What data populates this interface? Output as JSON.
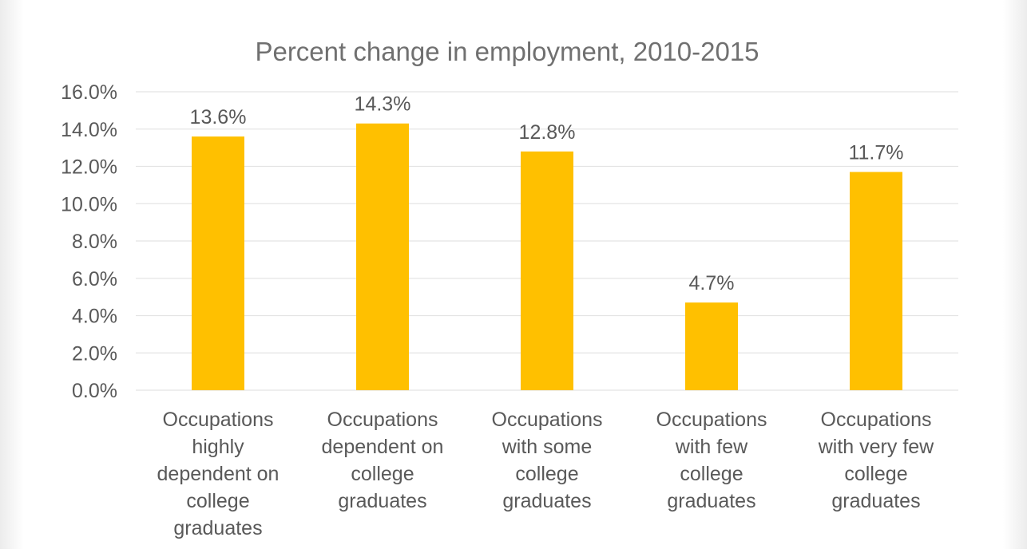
{
  "chart_data": {
    "type": "bar",
    "title": "Percent change in employment, 2010-2015",
    "categories": [
      [
        "Occupations",
        "highly",
        "dependent on",
        "college",
        "graduates"
      ],
      [
        "Occupations",
        "dependent on",
        "college",
        "graduates"
      ],
      [
        "Occupations",
        "with some",
        "college",
        "graduates"
      ],
      [
        "Occupations",
        "with few",
        "college",
        "graduates"
      ],
      [
        "Occupations",
        "with very few",
        "college",
        "graduates"
      ]
    ],
    "values": [
      13.6,
      14.3,
      12.8,
      4.7,
      11.7
    ],
    "data_labels": [
      "13.6%",
      "14.3%",
      "12.8%",
      "4.7%",
      "11.7%"
    ],
    "y_ticks": [
      "0.0%",
      "2.0%",
      "4.0%",
      "6.0%",
      "8.0%",
      "10.0%",
      "12.0%",
      "14.0%",
      "16.0%"
    ],
    "ylim": [
      0,
      16
    ],
    "xlabel": "",
    "ylabel": "",
    "grid": true,
    "legend": "none",
    "colors": {
      "bar": "#FFC000",
      "grid": "#E4E4E4",
      "text": "#595959",
      "title": "#707070",
      "background": "#FFFFFF",
      "frame": "#F6F6F6"
    }
  }
}
